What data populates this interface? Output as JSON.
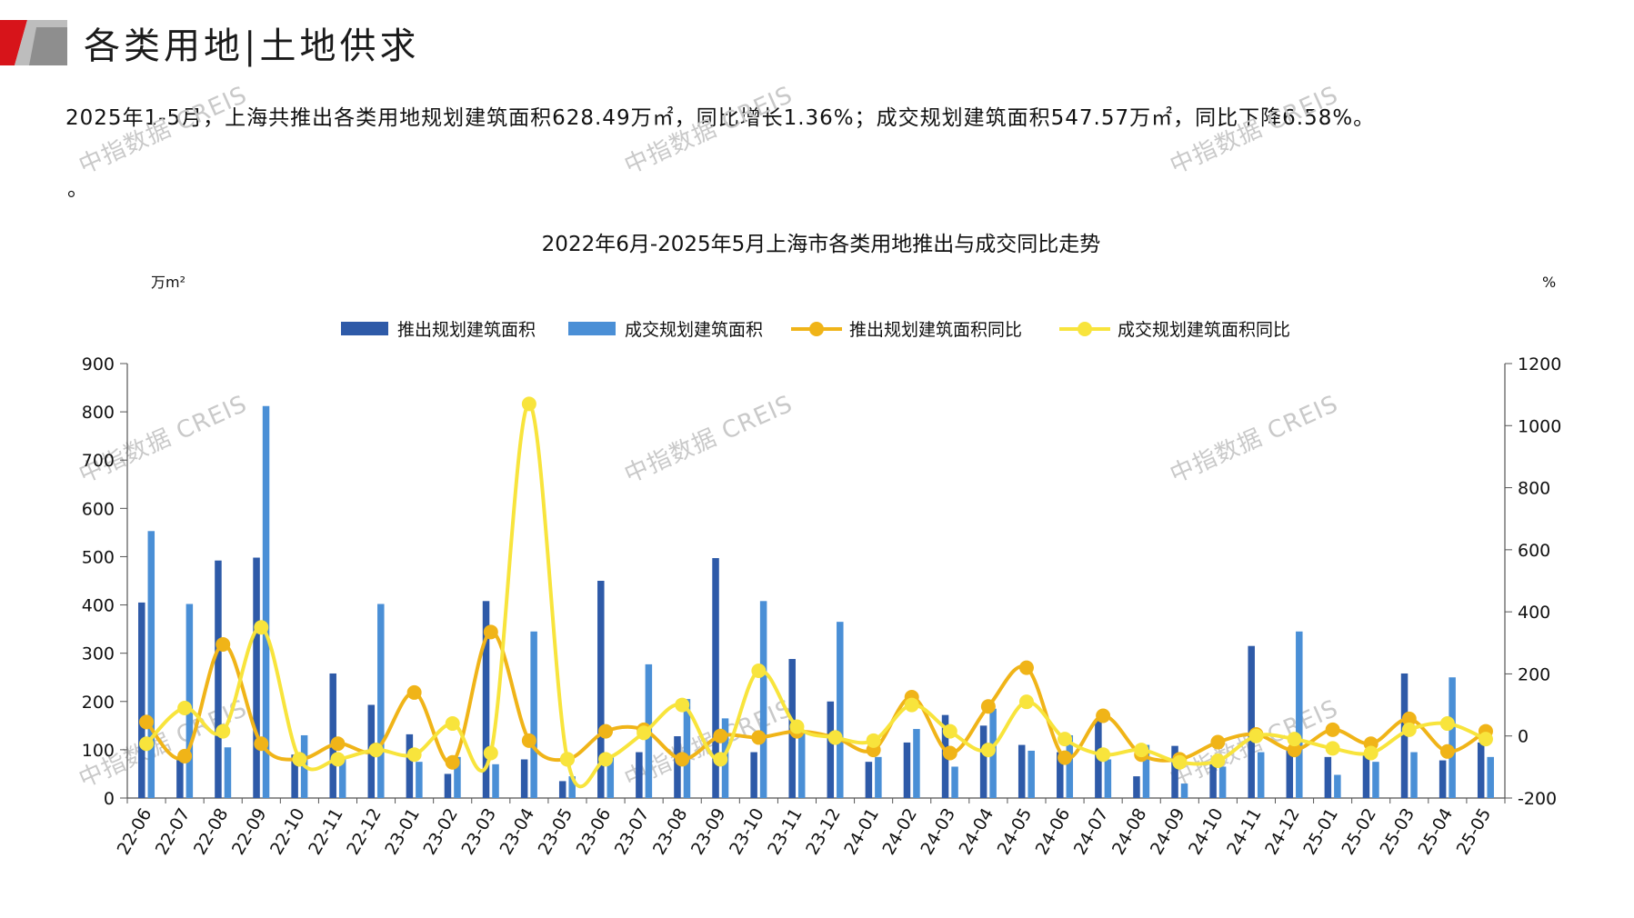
{
  "page": {
    "title": "各类用地|土地供求",
    "summary": "2025年1-5月，上海共推出各类用地规划建筑面积628.49万㎡，同比增长1.36%；成交规划建筑面积547.57万㎡，同比下降6.58%。",
    "summary_tail": "。",
    "watermark": "中指数据 CREIS",
    "colors": {
      "brand_red": "#d7141a",
      "brand_gray": "#9a9a9a"
    }
  },
  "chart_data": {
    "type": "bar",
    "title": "2022年6月-2025年5月上海市各类用地推出与成交同比走势",
    "ylabel": "万m²",
    "y2label": "%",
    "ylim": [
      0,
      900
    ],
    "y2lim": [
      -200,
      1200
    ],
    "yticks": [
      0,
      100,
      200,
      300,
      400,
      500,
      600,
      700,
      800,
      900
    ],
    "y2ticks": [
      -200,
      0,
      200,
      400,
      600,
      800,
      1000,
      1200
    ],
    "grid": false,
    "legend_position": "top-center",
    "categories": [
      "22-06",
      "22-07",
      "22-08",
      "22-09",
      "22-10",
      "22-11",
      "22-12",
      "23-01",
      "23-02",
      "23-03",
      "23-04",
      "23-05",
      "23-06",
      "23-07",
      "23-08",
      "23-09",
      "23-10",
      "23-11",
      "23-12",
      "24-01",
      "24-02",
      "24-03",
      "24-04",
      "24-05",
      "24-06",
      "24-07",
      "24-08",
      "24-09",
      "24-10",
      "24-11",
      "24-12",
      "25-01",
      "25-02",
      "25-03",
      "25-04",
      "25-05"
    ],
    "series": [
      {
        "name": "推出规划建筑面积",
        "type": "bar",
        "axis": "left",
        "color": "#2e5aa8",
        "values": [
          405,
          85,
          492,
          498,
          90,
          258,
          193,
          132,
          50,
          408,
          80,
          35,
          450,
          95,
          128,
          497,
          95,
          288,
          200,
          75,
          115,
          172,
          150,
          110,
          95,
          160,
          45,
          108,
          70,
          315,
          100,
          85,
          90,
          258,
          78,
          115
        ]
      },
      {
        "name": "成交规划建筑面积",
        "type": "bar",
        "axis": "left",
        "color": "#4a8fd6",
        "values": [
          553,
          402,
          105,
          812,
          130,
          85,
          402,
          75,
          85,
          70,
          345,
          45,
          90,
          277,
          205,
          165,
          408,
          135,
          365,
          85,
          143,
          65,
          185,
          98,
          130,
          80,
          110,
          30,
          65,
          95,
          345,
          48,
          75,
          95,
          250,
          85
        ]
      },
      {
        "name": "推出规划建筑面积同比",
        "type": "line",
        "axis": "right",
        "color": "#f0b418",
        "values": [
          45,
          -65,
          295,
          -25,
          -75,
          -25,
          -45,
          140,
          -85,
          335,
          -15,
          -75,
          15,
          20,
          -75,
          0,
          -5,
          15,
          -5,
          -45,
          125,
          -55,
          95,
          220,
          -70,
          65,
          -60,
          -75,
          -20,
          5,
          -45,
          20,
          -25,
          55,
          -50,
          15
        ]
      },
      {
        "name": "成交规划建筑面积同比",
        "type": "line",
        "axis": "right",
        "color": "#f8e43c",
        "values": [
          -25,
          90,
          15,
          350,
          -75,
          -75,
          -45,
          -60,
          40,
          -55,
          1070,
          -75,
          -75,
          10,
          100,
          -75,
          210,
          30,
          -5,
          -15,
          100,
          15,
          -45,
          110,
          -10,
          -60,
          -45,
          -85,
          -80,
          0,
          -10,
          -40,
          -55,
          20,
          40,
          -10
        ]
      }
    ]
  }
}
